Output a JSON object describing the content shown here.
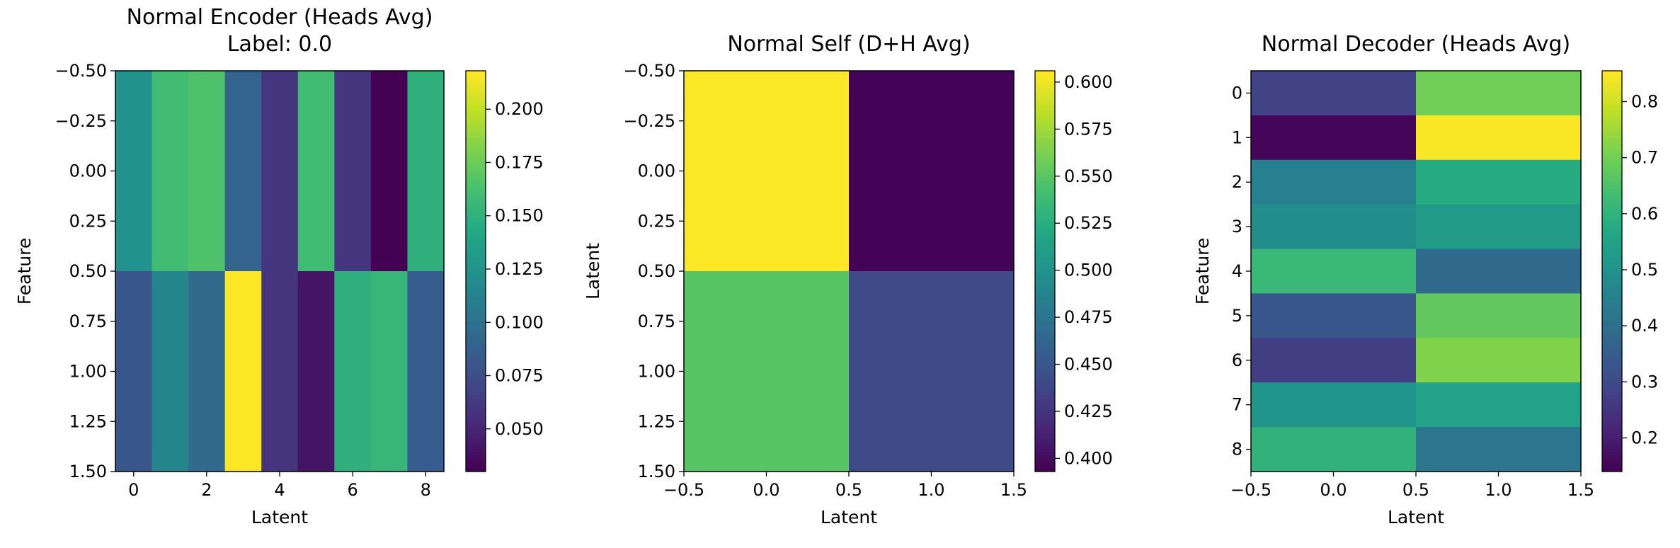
{
  "chart_data": [
    {
      "type": "heatmap",
      "title": "Normal Encoder (Heads Avg)",
      "subtitle": "Label: 0.0",
      "xlabel": "Latent",
      "ylabel": "Feature",
      "x_ticks": [
        "0",
        "2",
        "4",
        "6",
        "8"
      ],
      "x_tick_values": [
        0,
        2,
        4,
        6,
        8
      ],
      "xlim": [
        -0.5,
        8.5
      ],
      "y_ticks": [
        "−0.50",
        "−0.25",
        "0.00",
        "0.25",
        "0.50",
        "0.75",
        "1.00",
        "1.25",
        "1.50"
      ],
      "y_tick_values": [
        -0.5,
        -0.25,
        0.0,
        0.25,
        0.5,
        0.75,
        1.0,
        1.25,
        1.5
      ],
      "ylim": [
        -0.5,
        1.5
      ],
      "values": [
        [
          0.125,
          0.16,
          0.165,
          0.09,
          0.06,
          0.16,
          0.06,
          0.03,
          0.15
        ],
        [
          0.08,
          0.115,
          0.095,
          0.218,
          0.058,
          0.04,
          0.15,
          0.155,
          0.085
        ]
      ],
      "colorbar": {
        "vmin": 0.03,
        "vmax": 0.218,
        "ticks": [
          0.05,
          0.075,
          0.1,
          0.125,
          0.15,
          0.175,
          0.2
        ],
        "tick_labels": [
          "0.050",
          "0.075",
          "0.100",
          "0.125",
          "0.150",
          "0.175",
          "0.200"
        ]
      },
      "colormap": "viridis"
    },
    {
      "type": "heatmap",
      "title": "Normal Self (D+H Avg)",
      "xlabel": "Latent",
      "ylabel": "Latent",
      "x_ticks": [
        "−0.5",
        "0.0",
        "0.5",
        "1.0",
        "1.5"
      ],
      "x_tick_values": [
        -0.5,
        0.0,
        0.5,
        1.0,
        1.5
      ],
      "xlim": [
        -0.5,
        1.5
      ],
      "y_ticks": [
        "−0.50",
        "−0.25",
        "0.00",
        "0.25",
        "0.50",
        "0.75",
        "1.00",
        "1.25",
        "1.50"
      ],
      "y_tick_values": [
        -0.5,
        -0.25,
        0.0,
        0.25,
        0.5,
        0.75,
        1.0,
        1.25,
        1.5
      ],
      "ylim": [
        -0.5,
        1.5
      ],
      "values": [
        [
          0.605,
          0.394
        ],
        [
          0.55,
          0.44
        ]
      ],
      "colorbar": {
        "vmin": 0.393,
        "vmax": 0.606,
        "ticks": [
          0.4,
          0.425,
          0.45,
          0.475,
          0.5,
          0.525,
          0.55,
          0.575,
          0.6
        ],
        "tick_labels": [
          "0.400",
          "0.425",
          "0.450",
          "0.475",
          "0.500",
          "0.525",
          "0.550",
          "0.575",
          "0.600"
        ]
      },
      "colormap": "viridis"
    },
    {
      "type": "heatmap",
      "title": "Normal Decoder (Heads Avg)",
      "xlabel": "Latent",
      "ylabel": "Feature",
      "x_ticks": [
        "−0.5",
        "0.0",
        "0.5",
        "1.0",
        "1.5"
      ],
      "x_tick_values": [
        -0.5,
        0.0,
        0.5,
        1.0,
        1.5
      ],
      "xlim": [
        -0.5,
        1.5
      ],
      "y_ticks": [
        "0",
        "1",
        "2",
        "3",
        "4",
        "5",
        "6",
        "7",
        "8"
      ],
      "y_tick_values": [
        0,
        1,
        2,
        3,
        4,
        5,
        6,
        7,
        8
      ],
      "ylim": [
        -0.5,
        8.5
      ],
      "values": [
        [
          0.28,
          0.7
        ],
        [
          0.15,
          0.85
        ],
        [
          0.45,
          0.58
        ],
        [
          0.49,
          0.53
        ],
        [
          0.62,
          0.39
        ],
        [
          0.33,
          0.68
        ],
        [
          0.27,
          0.72
        ],
        [
          0.51,
          0.55
        ],
        [
          0.6,
          0.42
        ]
      ],
      "colorbar": {
        "vmin": 0.14,
        "vmax": 0.855,
        "ticks": [
          0.2,
          0.3,
          0.4,
          0.5,
          0.6,
          0.7,
          0.8
        ],
        "tick_labels": [
          "0.2",
          "0.3",
          "0.4",
          "0.5",
          "0.6",
          "0.7",
          "0.8"
        ]
      },
      "colormap": "viridis"
    }
  ]
}
